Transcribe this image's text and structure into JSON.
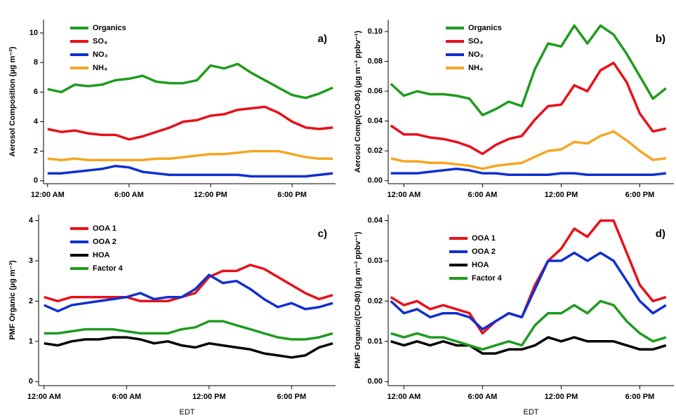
{
  "chart_data": [
    {
      "type": "line",
      "panel_label": "a)",
      "ylabel": "Aerosol Composition (µg m⁻³)",
      "x": [
        0,
        1,
        2,
        3,
        4,
        5,
        6,
        7,
        8,
        9,
        10,
        11,
        12,
        13,
        14,
        15,
        16,
        17,
        18,
        19,
        20,
        21
      ],
      "xlim": [
        -0.3,
        21.2
      ],
      "xticks": [
        {
          "value": 0,
          "label": "12:00 AM"
        },
        {
          "value": 6,
          "label": "6:00 AM"
        },
        {
          "value": 12,
          "label": "12:00 PM"
        },
        {
          "value": 18,
          "label": "6:00 PM"
        }
      ],
      "ylim": [
        -0.2,
        10.9
      ],
      "yticks": [
        0,
        2,
        4,
        6,
        8,
        10
      ],
      "grid": false,
      "series": [
        {
          "name": "Organics",
          "color": "#1f9b1f",
          "values": [
            6.2,
            6.0,
            6.5,
            6.4,
            6.5,
            6.8,
            6.9,
            7.1,
            6.7,
            6.6,
            6.6,
            6.8,
            7.8,
            7.6,
            7.9,
            7.3,
            6.8,
            6.3,
            5.8,
            5.6,
            5.9,
            6.3
          ]
        },
        {
          "name": "SO₄",
          "color": "#e8101a",
          "values": [
            3.5,
            3.3,
            3.4,
            3.2,
            3.1,
            3.1,
            2.8,
            3.0,
            3.3,
            3.6,
            4.0,
            4.1,
            4.4,
            4.5,
            4.8,
            4.9,
            5.0,
            4.6,
            4.0,
            3.6,
            3.5,
            3.6
          ]
        },
        {
          "name": "NO₃",
          "color": "#1030d0",
          "values": [
            0.5,
            0.5,
            0.6,
            0.7,
            0.8,
            1.0,
            0.9,
            0.6,
            0.5,
            0.4,
            0.4,
            0.4,
            0.4,
            0.4,
            0.4,
            0.3,
            0.3,
            0.3,
            0.3,
            0.3,
            0.4,
            0.5
          ]
        },
        {
          "name": "NH₄",
          "color": "#f5a623",
          "values": [
            1.5,
            1.4,
            1.5,
            1.4,
            1.4,
            1.4,
            1.4,
            1.4,
            1.5,
            1.5,
            1.6,
            1.7,
            1.8,
            1.8,
            1.9,
            2.0,
            2.0,
            2.0,
            1.8,
            1.6,
            1.5,
            1.5
          ]
        }
      ]
    },
    {
      "type": "line",
      "panel_label": "b)",
      "ylabel": "Aerosol Comp/(CO-80) (µg m⁻³ ppbv⁻¹)",
      "x": [
        -1,
        0,
        1,
        2,
        3,
        4,
        5,
        6,
        7,
        8,
        9,
        10,
        11,
        12,
        13,
        14,
        15,
        16,
        17,
        18,
        19,
        20
      ],
      "xlim": [
        -1.2,
        20.6
      ],
      "xticks": [
        {
          "value": 0,
          "label": "12:00 AM"
        },
        {
          "value": 6,
          "label": "6:00 AM"
        },
        {
          "value": 12,
          "label": "12:00 PM"
        },
        {
          "value": 18,
          "label": "6:00 PM"
        }
      ],
      "ylim": [
        -0.002,
        0.108
      ],
      "yticks": [
        {
          "value": 0,
          "label": "0.00"
        },
        0.02,
        0.04,
        0.06,
        0.08,
        {
          "value": 0.1,
          "label": "0.10"
        }
      ],
      "grid": false,
      "series": [
        {
          "name": "Organics",
          "color": "#1f9b1f",
          "values": [
            0.065,
            0.057,
            0.06,
            0.058,
            0.058,
            0.057,
            0.055,
            0.044,
            0.048,
            0.053,
            0.05,
            0.075,
            0.092,
            0.09,
            0.104,
            0.092,
            0.104,
            0.098,
            0.085,
            0.07,
            0.055,
            0.062
          ]
        },
        {
          "name": "SO₄",
          "color": "#e8101a",
          "values": [
            0.037,
            0.031,
            0.031,
            0.029,
            0.028,
            0.026,
            0.023,
            0.018,
            0.024,
            0.028,
            0.03,
            0.041,
            0.05,
            0.051,
            0.064,
            0.06,
            0.074,
            0.079,
            0.066,
            0.045,
            0.033,
            0.035
          ]
        },
        {
          "name": "NO₃",
          "color": "#1030d0",
          "values": [
            0.005,
            0.005,
            0.005,
            0.006,
            0.007,
            0.008,
            0.007,
            0.005,
            0.005,
            0.004,
            0.004,
            0.004,
            0.004,
            0.005,
            0.005,
            0.004,
            0.004,
            0.004,
            0.004,
            0.004,
            0.004,
            0.005
          ]
        },
        {
          "name": "NH₄",
          "color": "#f5a623",
          "values": [
            0.015,
            0.013,
            0.013,
            0.012,
            0.012,
            0.011,
            0.01,
            0.008,
            0.01,
            0.011,
            0.012,
            0.016,
            0.02,
            0.021,
            0.026,
            0.025,
            0.03,
            0.033,
            0.027,
            0.02,
            0.014,
            0.015
          ]
        }
      ]
    },
    {
      "type": "line",
      "panel_label": "c)",
      "ylabel": "PMF Organic (µg m⁻³)",
      "xlabel": "EDT",
      "x": [
        0,
        1,
        2,
        3,
        4,
        5,
        6,
        7,
        8,
        9,
        10,
        11,
        12,
        13,
        14,
        15,
        16,
        17,
        18,
        19,
        20,
        21
      ],
      "xlim": [
        -0.4,
        21.2
      ],
      "xticks": [
        {
          "value": 0,
          "label": "12:00 AM"
        },
        {
          "value": 6,
          "label": "6:00 AM"
        },
        {
          "value": 12,
          "label": "12:00 PM"
        },
        {
          "value": 18,
          "label": "6:00 PM"
        }
      ],
      "ylim": [
        -0.1,
        4.15
      ],
      "yticks": [
        0,
        1,
        2,
        3,
        4
      ],
      "grid": false,
      "series": [
        {
          "name": "OOA 1",
          "color": "#e8101a",
          "values": [
            2.1,
            2.0,
            2.1,
            2.1,
            2.1,
            2.1,
            2.1,
            2.0,
            2.0,
            2.0,
            2.1,
            2.2,
            2.6,
            2.75,
            2.75,
            2.9,
            2.8,
            2.6,
            2.4,
            2.2,
            2.05,
            2.15
          ]
        },
        {
          "name": "OOA 2",
          "color": "#1030d0",
          "values": [
            1.9,
            1.75,
            1.9,
            1.95,
            2.0,
            2.05,
            2.1,
            2.2,
            2.05,
            2.1,
            2.1,
            2.3,
            2.65,
            2.45,
            2.5,
            2.3,
            2.05,
            1.85,
            1.95,
            1.8,
            1.85,
            1.95
          ]
        },
        {
          "name": "HOA",
          "color": "#000000",
          "values": [
            0.95,
            0.9,
            1.0,
            1.05,
            1.05,
            1.1,
            1.1,
            1.05,
            0.95,
            1.0,
            0.9,
            0.85,
            0.95,
            0.9,
            0.85,
            0.8,
            0.7,
            0.65,
            0.6,
            0.65,
            0.85,
            0.95
          ]
        },
        {
          "name": "Factor 4",
          "color": "#1f9b1f",
          "values": [
            1.2,
            1.2,
            1.25,
            1.3,
            1.3,
            1.3,
            1.25,
            1.2,
            1.2,
            1.2,
            1.3,
            1.35,
            1.5,
            1.5,
            1.4,
            1.3,
            1.2,
            1.1,
            1.05,
            1.05,
            1.1,
            1.2
          ]
        }
      ]
    },
    {
      "type": "line",
      "panel_label": "d)",
      "ylabel": "PMF Organic/(CO-80) (µg m⁻³ ppbv⁻¹)",
      "xlabel": "EDT",
      "x": [
        -1,
        0,
        1,
        2,
        3,
        4,
        5,
        6,
        7,
        8,
        9,
        10,
        11,
        12,
        13,
        14,
        15,
        16,
        17,
        18,
        19,
        20
      ],
      "xlim": [
        -1.2,
        20.6
      ],
      "xticks": [
        {
          "value": 0,
          "label": "12:00 AM"
        },
        {
          "value": 6,
          "label": "6:00 AM"
        },
        {
          "value": 12,
          "label": "12:00 PM"
        },
        {
          "value": 18,
          "label": "6:00 PM"
        }
      ],
      "ylim": [
        -0.001,
        0.0415
      ],
      "yticks": [
        {
          "value": 0,
          "label": "0.00"
        },
        0.01,
        0.02,
        0.03,
        0.04
      ],
      "grid": false,
      "series": [
        {
          "name": "OOA 1",
          "color": "#e8101a",
          "values": [
            0.021,
            0.019,
            0.02,
            0.018,
            0.019,
            0.018,
            0.017,
            0.012,
            0.015,
            0.017,
            0.016,
            0.024,
            0.03,
            0.033,
            0.038,
            0.036,
            0.04,
            0.04,
            0.032,
            0.024,
            0.02,
            0.021
          ]
        },
        {
          "name": "OOA 2",
          "color": "#1030d0",
          "values": [
            0.02,
            0.017,
            0.018,
            0.016,
            0.017,
            0.017,
            0.016,
            0.013,
            0.015,
            0.017,
            0.016,
            0.023,
            0.03,
            0.03,
            0.032,
            0.03,
            0.032,
            0.03,
            0.025,
            0.02,
            0.017,
            0.019
          ]
        },
        {
          "name": "HOA",
          "color": "#000000",
          "values": [
            0.01,
            0.009,
            0.01,
            0.009,
            0.01,
            0.009,
            0.009,
            0.007,
            0.007,
            0.008,
            0.008,
            0.009,
            0.011,
            0.01,
            0.011,
            0.01,
            0.01,
            0.01,
            0.009,
            0.008,
            0.008,
            0.009
          ]
        },
        {
          "name": "Factor 4",
          "color": "#1f9b1f",
          "values": [
            0.012,
            0.011,
            0.012,
            0.011,
            0.011,
            0.01,
            0.009,
            0.008,
            0.009,
            0.01,
            0.009,
            0.014,
            0.017,
            0.017,
            0.019,
            0.017,
            0.02,
            0.019,
            0.015,
            0.012,
            0.01,
            0.011
          ]
        }
      ]
    }
  ]
}
